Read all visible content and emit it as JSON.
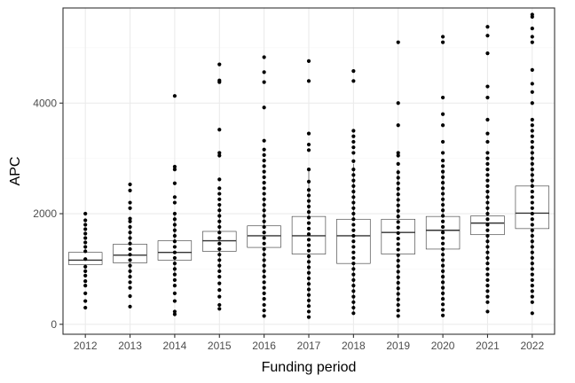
{
  "chart_data": {
    "type": "box",
    "title": "",
    "xlabel": "Funding period",
    "ylabel": "APC",
    "ylim": [
      -180,
      5720
    ],
    "yticks": [
      0,
      2000,
      4000
    ],
    "y_minor_ticks": [
      1000,
      3000,
      5000
    ],
    "grid": true,
    "theme_colors": {
      "panel_border": "#333333",
      "grid_major": "#ebebeb",
      "grid_minor": "#f5f5f5",
      "box_fill": "#ffffff",
      "box_line": "#333333",
      "points": "#000000"
    },
    "categories": [
      "2012",
      "2013",
      "2014",
      "2015",
      "2016",
      "2017",
      "2018",
      "2019",
      "2020",
      "2021",
      "2022"
    ],
    "boxes": [
      {
        "category": "2012",
        "q1": 1080,
        "median": 1160,
        "q3": 1300,
        "lower_whisker": 1000,
        "upper_whisker": 1400
      },
      {
        "category": "2013",
        "q1": 1110,
        "median": 1250,
        "q3": 1450,
        "lower_whisker": 850,
        "upper_whisker": 1800
      },
      {
        "category": "2014",
        "q1": 1160,
        "median": 1300,
        "q3": 1510,
        "lower_whisker": 900,
        "upper_whisker": 2000
      },
      {
        "category": "2015",
        "q1": 1320,
        "median": 1510,
        "q3": 1680,
        "lower_whisker": 1000,
        "upper_whisker": 2150
      },
      {
        "category": "2016",
        "q1": 1390,
        "median": 1600,
        "q3": 1780,
        "lower_whisker": 850,
        "upper_whisker": 2300
      },
      {
        "category": "2017",
        "q1": 1270,
        "median": 1600,
        "q3": 1950,
        "lower_whisker": 300,
        "upper_whisker": 2800
      },
      {
        "category": "2018",
        "q1": 1100,
        "median": 1600,
        "q3": 1900,
        "lower_whisker": 200,
        "upper_whisker": 2900
      },
      {
        "category": "2019",
        "q1": 1270,
        "median": 1660,
        "q3": 1900,
        "lower_whisker": 300,
        "upper_whisker": 2800
      },
      {
        "category": "2020",
        "q1": 1360,
        "median": 1700,
        "q3": 1950,
        "lower_whisker": 500,
        "upper_whisker": 2800
      },
      {
        "category": "2021",
        "q1": 1620,
        "median": 1830,
        "q3": 1960,
        "lower_whisker": 1100,
        "upper_whisker": 2400
      },
      {
        "category": "2022",
        "q1": 1730,
        "median": 2010,
        "q3": 2500,
        "lower_whisker": 1000,
        "upper_whisker": 3200
      }
    ],
    "points": [
      {
        "category": "2012",
        "values": [
          300,
          420,
          560,
          700,
          780,
          880,
          960,
          1040,
          1180,
          1320,
          1400,
          1480,
          1560,
          1640,
          1720,
          1800,
          1880,
          2000
        ]
      },
      {
        "category": "2013",
        "values": [
          320,
          510,
          660,
          760,
          860,
          960,
          1060,
          1160,
          1260,
          1360,
          1460,
          1560,
          1660,
          1760,
          1860,
          1910,
          2100,
          2200,
          2420,
          2530
        ]
      },
      {
        "category": "2014",
        "values": [
          180,
          230,
          420,
          560,
          700,
          800,
          900,
          1000,
          1100,
          1200,
          1300,
          1400,
          1500,
          1600,
          1700,
          1800,
          1900,
          2000,
          2200,
          2300,
          2550,
          2800,
          2850,
          4130
        ]
      },
      {
        "category": "2015",
        "values": [
          280,
          350,
          500,
          620,
          740,
          860,
          960,
          1060,
          1160,
          1260,
          1360,
          1460,
          1560,
          1660,
          1760,
          1860,
          1960,
          2060,
          2160,
          2260,
          2360,
          2460,
          2620,
          3050,
          3100,
          3520,
          4380,
          4410,
          4700
        ]
      },
      {
        "category": "2016",
        "values": [
          150,
          250,
          350,
          460,
          560,
          660,
          760,
          860,
          960,
          1060,
          1160,
          1260,
          1360,
          1460,
          1560,
          1660,
          1760,
          1860,
          1960,
          2060,
          2160,
          2260,
          2360,
          2460,
          2560,
          2660,
          2760,
          2860,
          2960,
          3060,
          3160,
          3320,
          3920,
          4380,
          4560,
          4830
        ]
      },
      {
        "category": "2017",
        "values": [
          130,
          230,
          330,
          430,
          530,
          630,
          730,
          830,
          930,
          1030,
          1130,
          1230,
          1330,
          1430,
          1530,
          1630,
          1730,
          1830,
          1930,
          2030,
          2130,
          2230,
          2330,
          2430,
          2580,
          2800,
          3150,
          3250,
          3450,
          4400,
          4760
        ]
      },
      {
        "category": "2018",
        "values": [
          200,
          300,
          400,
          500,
          600,
          700,
          800,
          900,
          1000,
          1100,
          1200,
          1300,
          1400,
          1500,
          1600,
          1700,
          1800,
          1900,
          2000,
          2100,
          2200,
          2300,
          2400,
          2500,
          2600,
          2700,
          2800,
          2950,
          3100,
          3200,
          3300,
          3400,
          3500,
          4400,
          4580
        ]
      },
      {
        "category": "2019",
        "values": [
          150,
          250,
          350,
          450,
          550,
          650,
          750,
          850,
          950,
          1050,
          1150,
          1250,
          1350,
          1450,
          1550,
          1650,
          1750,
          1850,
          1950,
          2050,
          2150,
          2250,
          2350,
          2450,
          2550,
          2650,
          2750,
          2900,
          3050,
          3100,
          3600,
          4000,
          5100
        ]
      },
      {
        "category": "2020",
        "values": [
          160,
          260,
          360,
          460,
          560,
          660,
          760,
          860,
          960,
          1060,
          1160,
          1260,
          1360,
          1460,
          1560,
          1660,
          1760,
          1860,
          1960,
          2060,
          2160,
          2260,
          2360,
          2460,
          2560,
          2660,
          2760,
          2860,
          2960,
          3100,
          3300,
          3600,
          3800,
          4100,
          5100,
          5200
        ]
      },
      {
        "category": "2021",
        "values": [
          230,
          400,
          500,
          600,
          700,
          800,
          900,
          1000,
          1100,
          1200,
          1300,
          1400,
          1500,
          1600,
          1700,
          1800,
          1900,
          2000,
          2100,
          2200,
          2300,
          2400,
          2500,
          2600,
          2700,
          2800,
          2900,
          3000,
          3100,
          3300,
          3450,
          3700,
          4100,
          4300,
          4900,
          5220,
          5380
        ]
      },
      {
        "category": "2022",
        "values": [
          200,
          400,
          500,
          600,
          700,
          800,
          900,
          1000,
          1100,
          1200,
          1300,
          1400,
          1500,
          1600,
          1700,
          1800,
          1900,
          2000,
          2100,
          2200,
          2300,
          2400,
          2500,
          2600,
          2700,
          2800,
          2900,
          3000,
          3100,
          3200,
          3300,
          3400,
          3500,
          3600,
          3700,
          4000,
          4200,
          4350,
          4600,
          5100,
          5200,
          5350,
          5560,
          5600
        ]
      }
    ]
  }
}
